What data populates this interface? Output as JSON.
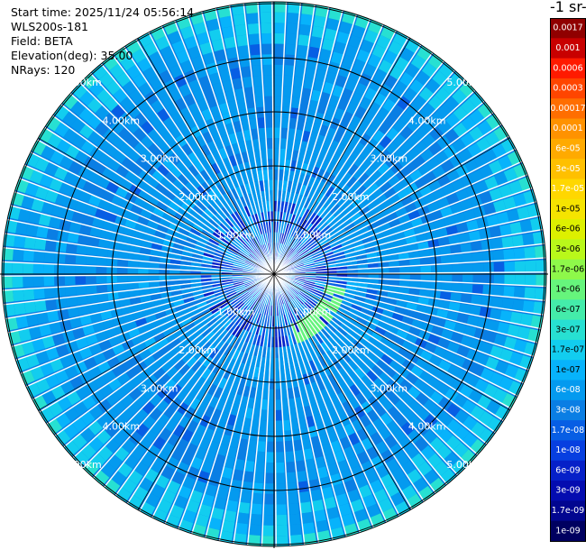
{
  "header": {
    "start_time": "Start time: 2025/11/24 05:56:14",
    "instrument": "WLS200s-181",
    "field": "Field: BETA",
    "elevation": "Elevation(deg): 35.00",
    "nrays": "NRays: 120"
  },
  "colorbar": {
    "title": "-1 sr-1",
    "labels": [
      "0.0017",
      "0.001",
      "0.0006",
      "0.0003",
      "0.00017",
      "0.0001",
      "6e-05",
      "3e-05",
      "1.7e-05",
      "1e-05",
      "6e-06",
      "3e-06",
      "1.7e-06",
      "1e-06",
      "6e-07",
      "3e-07",
      "1.7e-07",
      "1e-07",
      "6e-08",
      "3e-08",
      "1.7e-08",
      "1e-08",
      "6e-09",
      "3e-09",
      "1.7e-09",
      "1e-09"
    ],
    "colors": [
      "#900000",
      "#c80000",
      "#ff1a00",
      "#ff4500",
      "#ff6e00",
      "#ff9200",
      "#ffaa00",
      "#ffc000",
      "#ffd700",
      "#f5e400",
      "#ddf000",
      "#b9f81a",
      "#8ef84a",
      "#66f57c",
      "#44ecaa",
      "#27e0d2",
      "#12cdef",
      "#07b3fb",
      "#049aef",
      "#0a7ee4",
      "#075ee4",
      "#073fe0",
      "#0620c8",
      "#040cb0",
      "#020690",
      "#000060"
    ]
  },
  "chart_data": {
    "type": "heatmap",
    "projection": "polar (PPI scan)",
    "field": "BETA",
    "elevation_deg": 35.0,
    "n_rays": 120,
    "range_rings_km": [
      1,
      2,
      3,
      4,
      5
    ],
    "range_labels": [
      "1.00km",
      "2.00km",
      "3.00km",
      "4.00km",
      "5.00km"
    ],
    "scale": "log",
    "color_range": [
      1e-09,
      0.0017
    ],
    "dominant_value": 6e-08,
    "features": [
      {
        "description": "elevated-return arc",
        "azimuth_deg_range": [
          100,
          160
        ],
        "range_km": [
          1.0,
          1.4
        ],
        "value": 1e-06
      }
    ]
  }
}
